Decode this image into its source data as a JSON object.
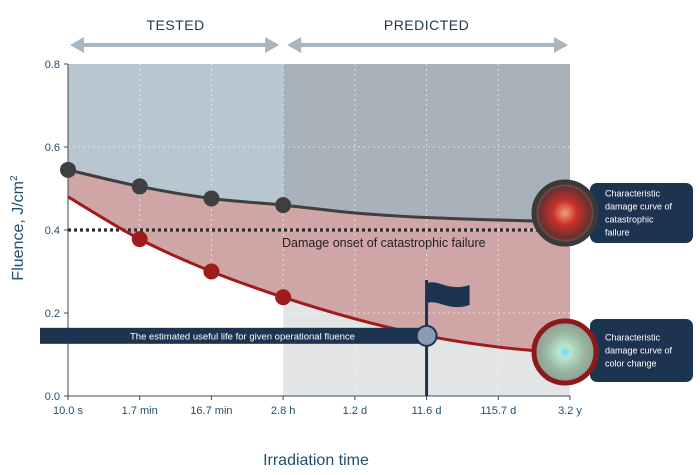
{
  "chart_data": {
    "type": "line",
    "xlabel": "Irradiation time",
    "ylabel": "Fluence, J/cm",
    "ylabel_superscript": "2",
    "ylim": [
      0,
      0.8
    ],
    "yticks": [
      "0.0",
      "0.2",
      "0.4",
      "0.6",
      "0.8"
    ],
    "categories": [
      "10.0 s",
      "1.7 min",
      "16.7 min",
      "2.8 h",
      "1.2 d",
      "11.6 d",
      "115.7 d",
      "3.2 y"
    ],
    "grid": true,
    "phases": [
      {
        "label": "TESTED",
        "from": 0,
        "to": 3
      },
      {
        "label": "PREDICTED",
        "from": 3,
        "to": 7
      }
    ],
    "series": [
      {
        "color": "#3f3f3f",
        "x": [
          0,
          1,
          2,
          3,
          4,
          5,
          6,
          7
        ],
        "values": [
          0.545,
          0.505,
          0.476,
          0.46,
          0.441,
          0.43,
          0.424,
          0.42
        ],
        "marker_indices": [
          0,
          1,
          2,
          3
        ]
      },
      {
        "color": "#a01c1c",
        "x": [
          0,
          1,
          2,
          3,
          4,
          5,
          6,
          7
        ],
        "values": [
          0.48,
          0.378,
          0.3,
          0.238,
          0.186,
          0.145,
          0.118,
          0.102
        ],
        "marker_indices": [
          1,
          2,
          3
        ]
      }
    ],
    "threshold": {
      "value": 0.4,
      "label": "Damage onset of catastrophic failure"
    },
    "operational_point": {
      "x": 5,
      "y": 0.145,
      "label": "The estimated useful life for given operational fluence"
    },
    "callouts": [
      {
        "lines": [
          "Characteristic",
          "damage curve of",
          "catastrophic",
          "failure"
        ],
        "y": 0.42
      },
      {
        "lines": [
          "Characteristic",
          "damage curve of",
          "color change"
        ],
        "y": 0.102
      }
    ],
    "colors": {
      "tested_bg": "#b7c6cf",
      "predicted_bg": "#a9b1ba",
      "below_bg": "#e2e4e6",
      "band_fill": "#c98a8a",
      "dark_curve": "#3f3f3f",
      "red_curve": "#a01c1c",
      "dotted_line": "#2b2b2b",
      "navy": "#1c3450",
      "arrow": "#a7b6c1",
      "op_marker": "#8c9ab3"
    }
  }
}
